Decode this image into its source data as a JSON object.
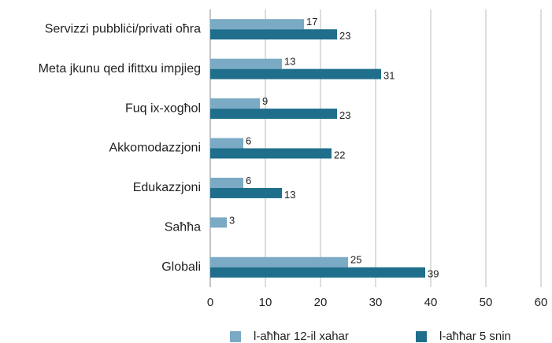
{
  "chart_data": {
    "type": "barh",
    "categories": [
      "Servizzi pubbliċi/privati oħra",
      "Meta jkunu qed ifittxu impjieg",
      "Fuq ix-xogħol",
      "Akkomodazzjoni",
      "Edukazzjoni",
      "Saħħa",
      "Globali"
    ],
    "series": [
      {
        "name": "l-aħħar 12-il xahar",
        "color": "#7aaac4",
        "values": [
          17,
          13,
          9,
          6,
          6,
          3,
          25
        ]
      },
      {
        "name": "l-aħħar 5 snin",
        "color": "#1f6e8c",
        "values": [
          23,
          31,
          23,
          22,
          13,
          null,
          39
        ]
      }
    ],
    "xlim": [
      0,
      60
    ],
    "xticks": [
      0,
      10,
      20,
      30,
      40,
      50,
      60
    ],
    "grid": true,
    "legend": "bottom"
  }
}
